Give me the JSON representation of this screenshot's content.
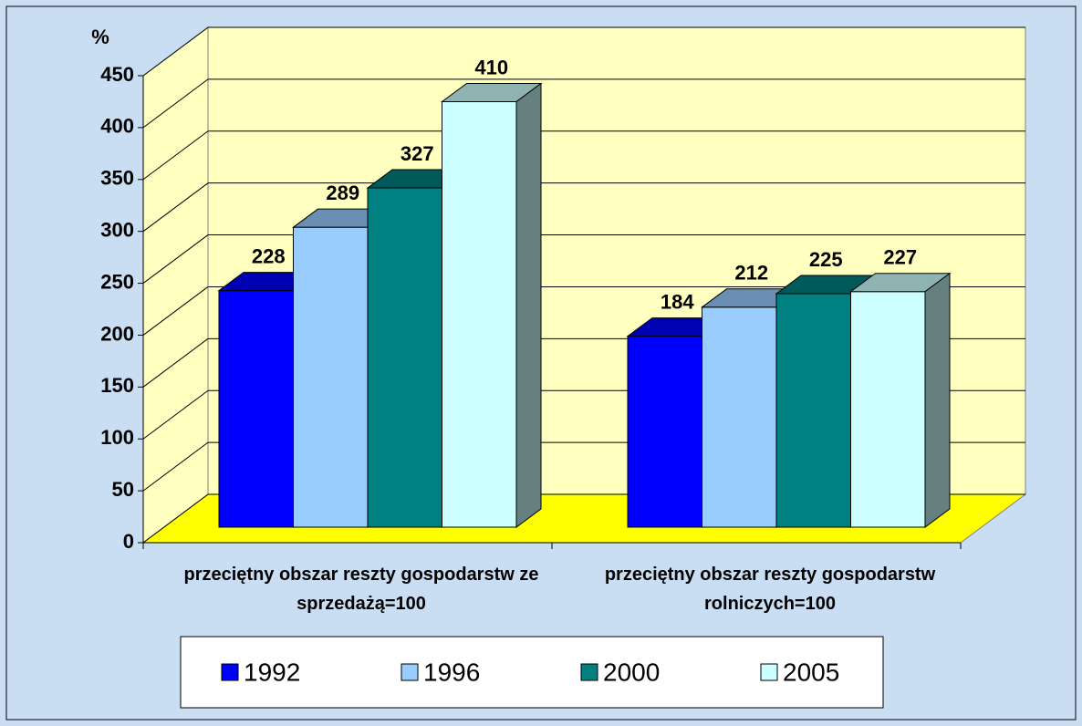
{
  "chart_data": {
    "type": "bar",
    "y_label": "%",
    "categories": [
      "przeciętny obszar reszty gospodarstw ze sprzedażą=100",
      "przeciętny obszar reszty gospodarstw rolniczych=100"
    ],
    "series": [
      {
        "name": "1992",
        "color": "#0000ff",
        "values": [
          228,
          184
        ]
      },
      {
        "name": "1996",
        "color": "#99ccff",
        "values": [
          289,
          212
        ]
      },
      {
        "name": "2000",
        "color": "#008080",
        "values": [
          327,
          225
        ]
      },
      {
        "name": "2005",
        "color": "#ccffff",
        "values": [
          410,
          227
        ]
      }
    ],
    "ylim": [
      0,
      450
    ],
    "yticks": [
      0,
      50,
      100,
      150,
      200,
      250,
      300,
      350,
      400,
      450
    ],
    "grid": true,
    "legend": "bottom"
  }
}
